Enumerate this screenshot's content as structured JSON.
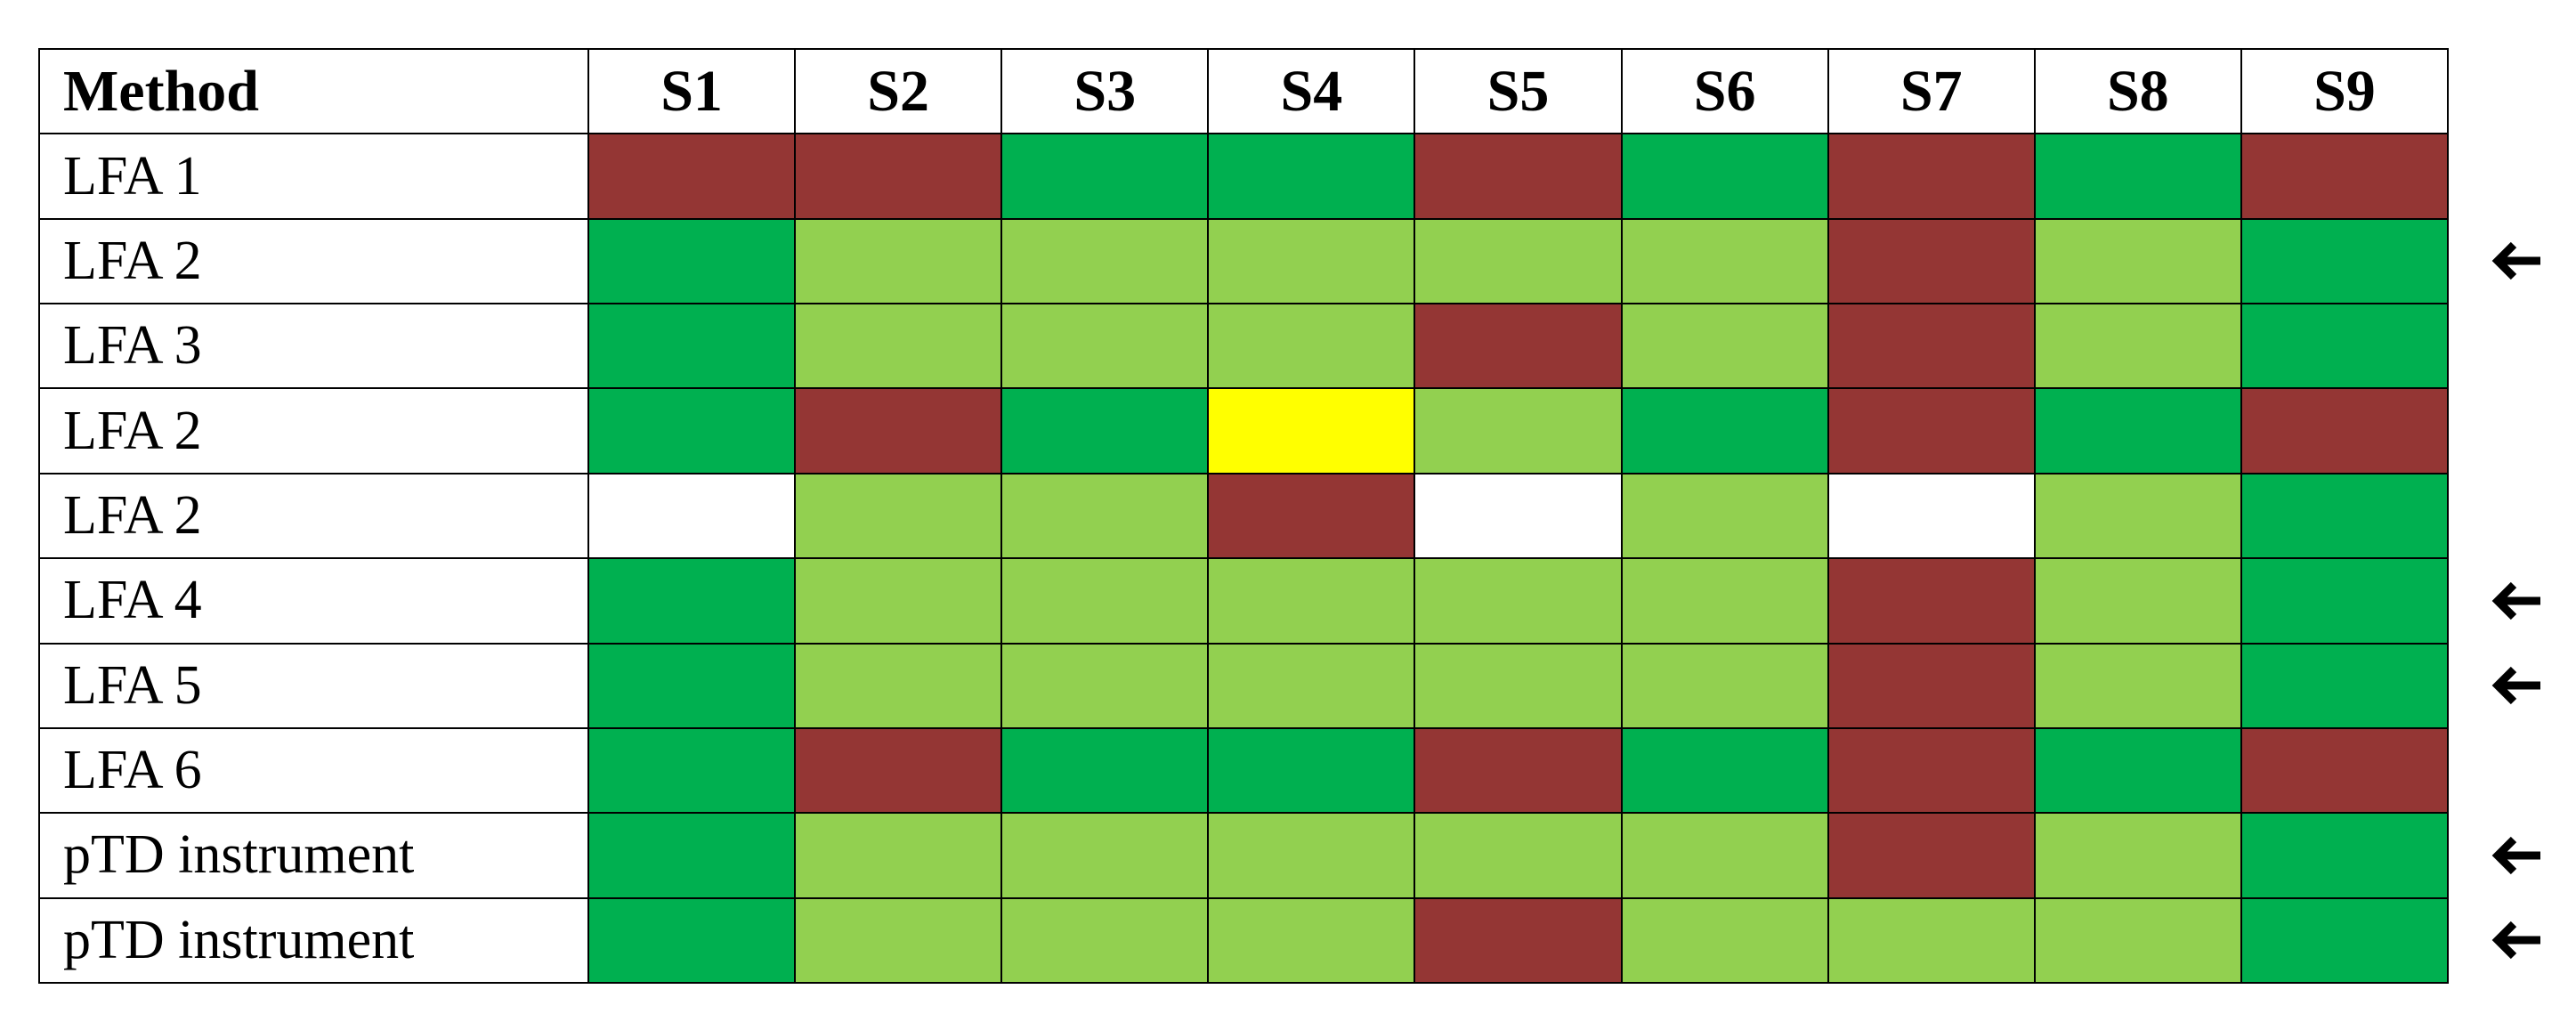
{
  "table": {
    "header": [
      "Method",
      "S1",
      "S2",
      "S3",
      "S4",
      "S5",
      "S6",
      "S7",
      "S8",
      "S9"
    ],
    "palette": {
      "R": "#943634",
      "G": "#00b050",
      "L": "#92d050",
      "Y": "#ffff00",
      "W": "#ffffff"
    },
    "rows": [
      {
        "label": "LFA 1",
        "cells": [
          "R",
          "R",
          "G",
          "G",
          "R",
          "G",
          "R",
          "G",
          "R"
        ],
        "arrow": false
      },
      {
        "label": "LFA 2",
        "cells": [
          "G",
          "L",
          "L",
          "L",
          "L",
          "L",
          "R",
          "L",
          "G"
        ],
        "arrow": true
      },
      {
        "label": "LFA 3",
        "cells": [
          "G",
          "L",
          "L",
          "L",
          "R",
          "L",
          "R",
          "L",
          "G"
        ],
        "arrow": false
      },
      {
        "label": "LFA 2",
        "cells": [
          "G",
          "R",
          "G",
          "Y",
          "L",
          "G",
          "R",
          "G",
          "R"
        ],
        "arrow": false
      },
      {
        "label": "LFA 2",
        "cells": [
          "W",
          "L",
          "L",
          "R",
          "W",
          "L",
          "W",
          "L",
          "G"
        ],
        "arrow": false
      },
      {
        "label": "LFA 4",
        "cells": [
          "G",
          "L",
          "L",
          "L",
          "L",
          "L",
          "R",
          "L",
          "G"
        ],
        "arrow": true
      },
      {
        "label": "LFA 5",
        "cells": [
          "G",
          "L",
          "L",
          "L",
          "L",
          "L",
          "R",
          "L",
          "G"
        ],
        "arrow": true
      },
      {
        "label": "LFA 6",
        "cells": [
          "G",
          "R",
          "G",
          "G",
          "R",
          "G",
          "R",
          "G",
          "R"
        ],
        "arrow": false
      },
      {
        "label": "pTD instrument",
        "cells": [
          "G",
          "L",
          "L",
          "L",
          "L",
          "L",
          "R",
          "L",
          "G"
        ],
        "arrow": true
      },
      {
        "label": "pTD instrument",
        "cells": [
          "G",
          "L",
          "L",
          "L",
          "R",
          "L",
          "L",
          "L",
          "G"
        ],
        "arrow": true
      }
    ]
  }
}
